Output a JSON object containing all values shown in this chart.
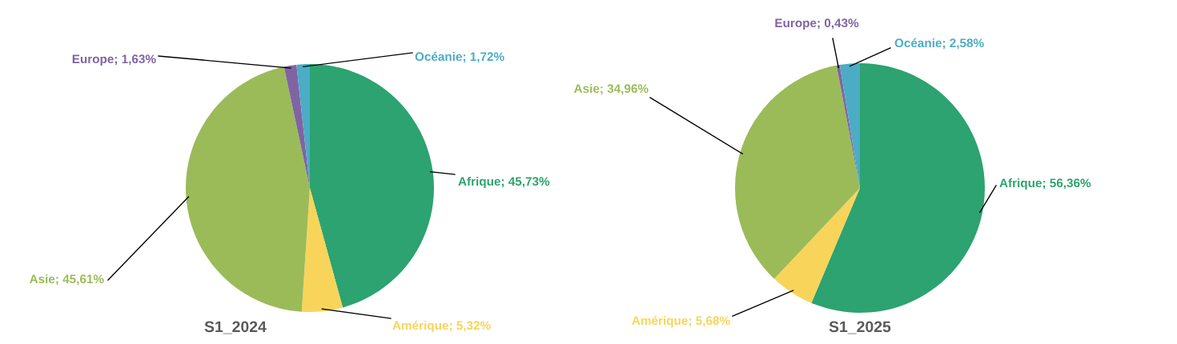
{
  "chart_data": [
    {
      "type": "pie",
      "title": "S1_2024",
      "categories": [
        "Afrique",
        "Amérique",
        "Asie",
        "Europe",
        "Océanie"
      ],
      "values": [
        45.73,
        5.32,
        45.61,
        1.63,
        1.72
      ],
      "value_labels": [
        "45,73%",
        "5,32%",
        "45,61%",
        "1,63%",
        "1,72%"
      ],
      "colors": [
        "#2ca370",
        "#f9d45a",
        "#9bbb59",
        "#8064a2",
        "#4bacc6"
      ]
    },
    {
      "type": "pie",
      "title": "S1_2025",
      "categories": [
        "Afrique",
        "Amérique",
        "Asie",
        "Europe",
        "Océanie"
      ],
      "values": [
        56.36,
        5.68,
        34.96,
        0.43,
        2.58
      ],
      "value_labels": [
        "56,36%",
        "5,68%",
        "34,96%",
        "0,43%",
        "2,58%"
      ],
      "colors": [
        "#2ca370",
        "#f9d45a",
        "#9bbb59",
        "#8064a2",
        "#4bacc6"
      ]
    }
  ]
}
